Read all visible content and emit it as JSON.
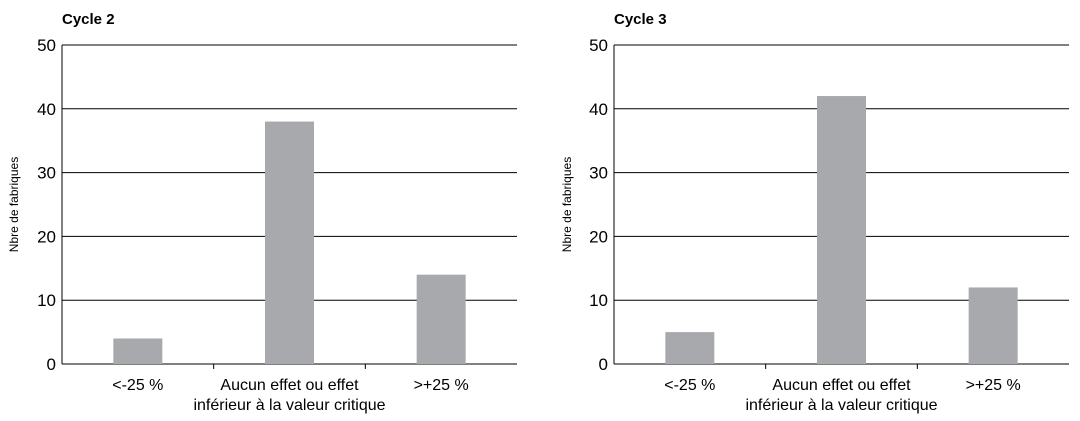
{
  "chart_data": [
    {
      "type": "bar",
      "title": "Cycle 2",
      "ylabel": "Nbre de fabriques",
      "xlabel": "",
      "ylim": [
        0,
        50
      ],
      "yticks": [
        0,
        10,
        20,
        30,
        40,
        50
      ],
      "grid": true,
      "categories": [
        [
          "<-25 %"
        ],
        [
          "Aucun effet ou effet",
          "inférieur à la valeur critique"
        ],
        [
          ">+25 %"
        ]
      ],
      "values": [
        4,
        38,
        14
      ],
      "bar_color": "#a7a9ac"
    },
    {
      "type": "bar",
      "title": "Cycle 3",
      "ylabel": "Nbre de fabriques",
      "xlabel": "",
      "ylim": [
        0,
        50
      ],
      "yticks": [
        0,
        10,
        20,
        30,
        40,
        50
      ],
      "grid": true,
      "categories": [
        [
          "<-25 %"
        ],
        [
          "Aucun effet ou effet",
          "inférieur à la valeur critique"
        ],
        [
          ">+25 %"
        ]
      ],
      "values": [
        5,
        42,
        12
      ],
      "bar_color": "#a7a9ac"
    }
  ]
}
